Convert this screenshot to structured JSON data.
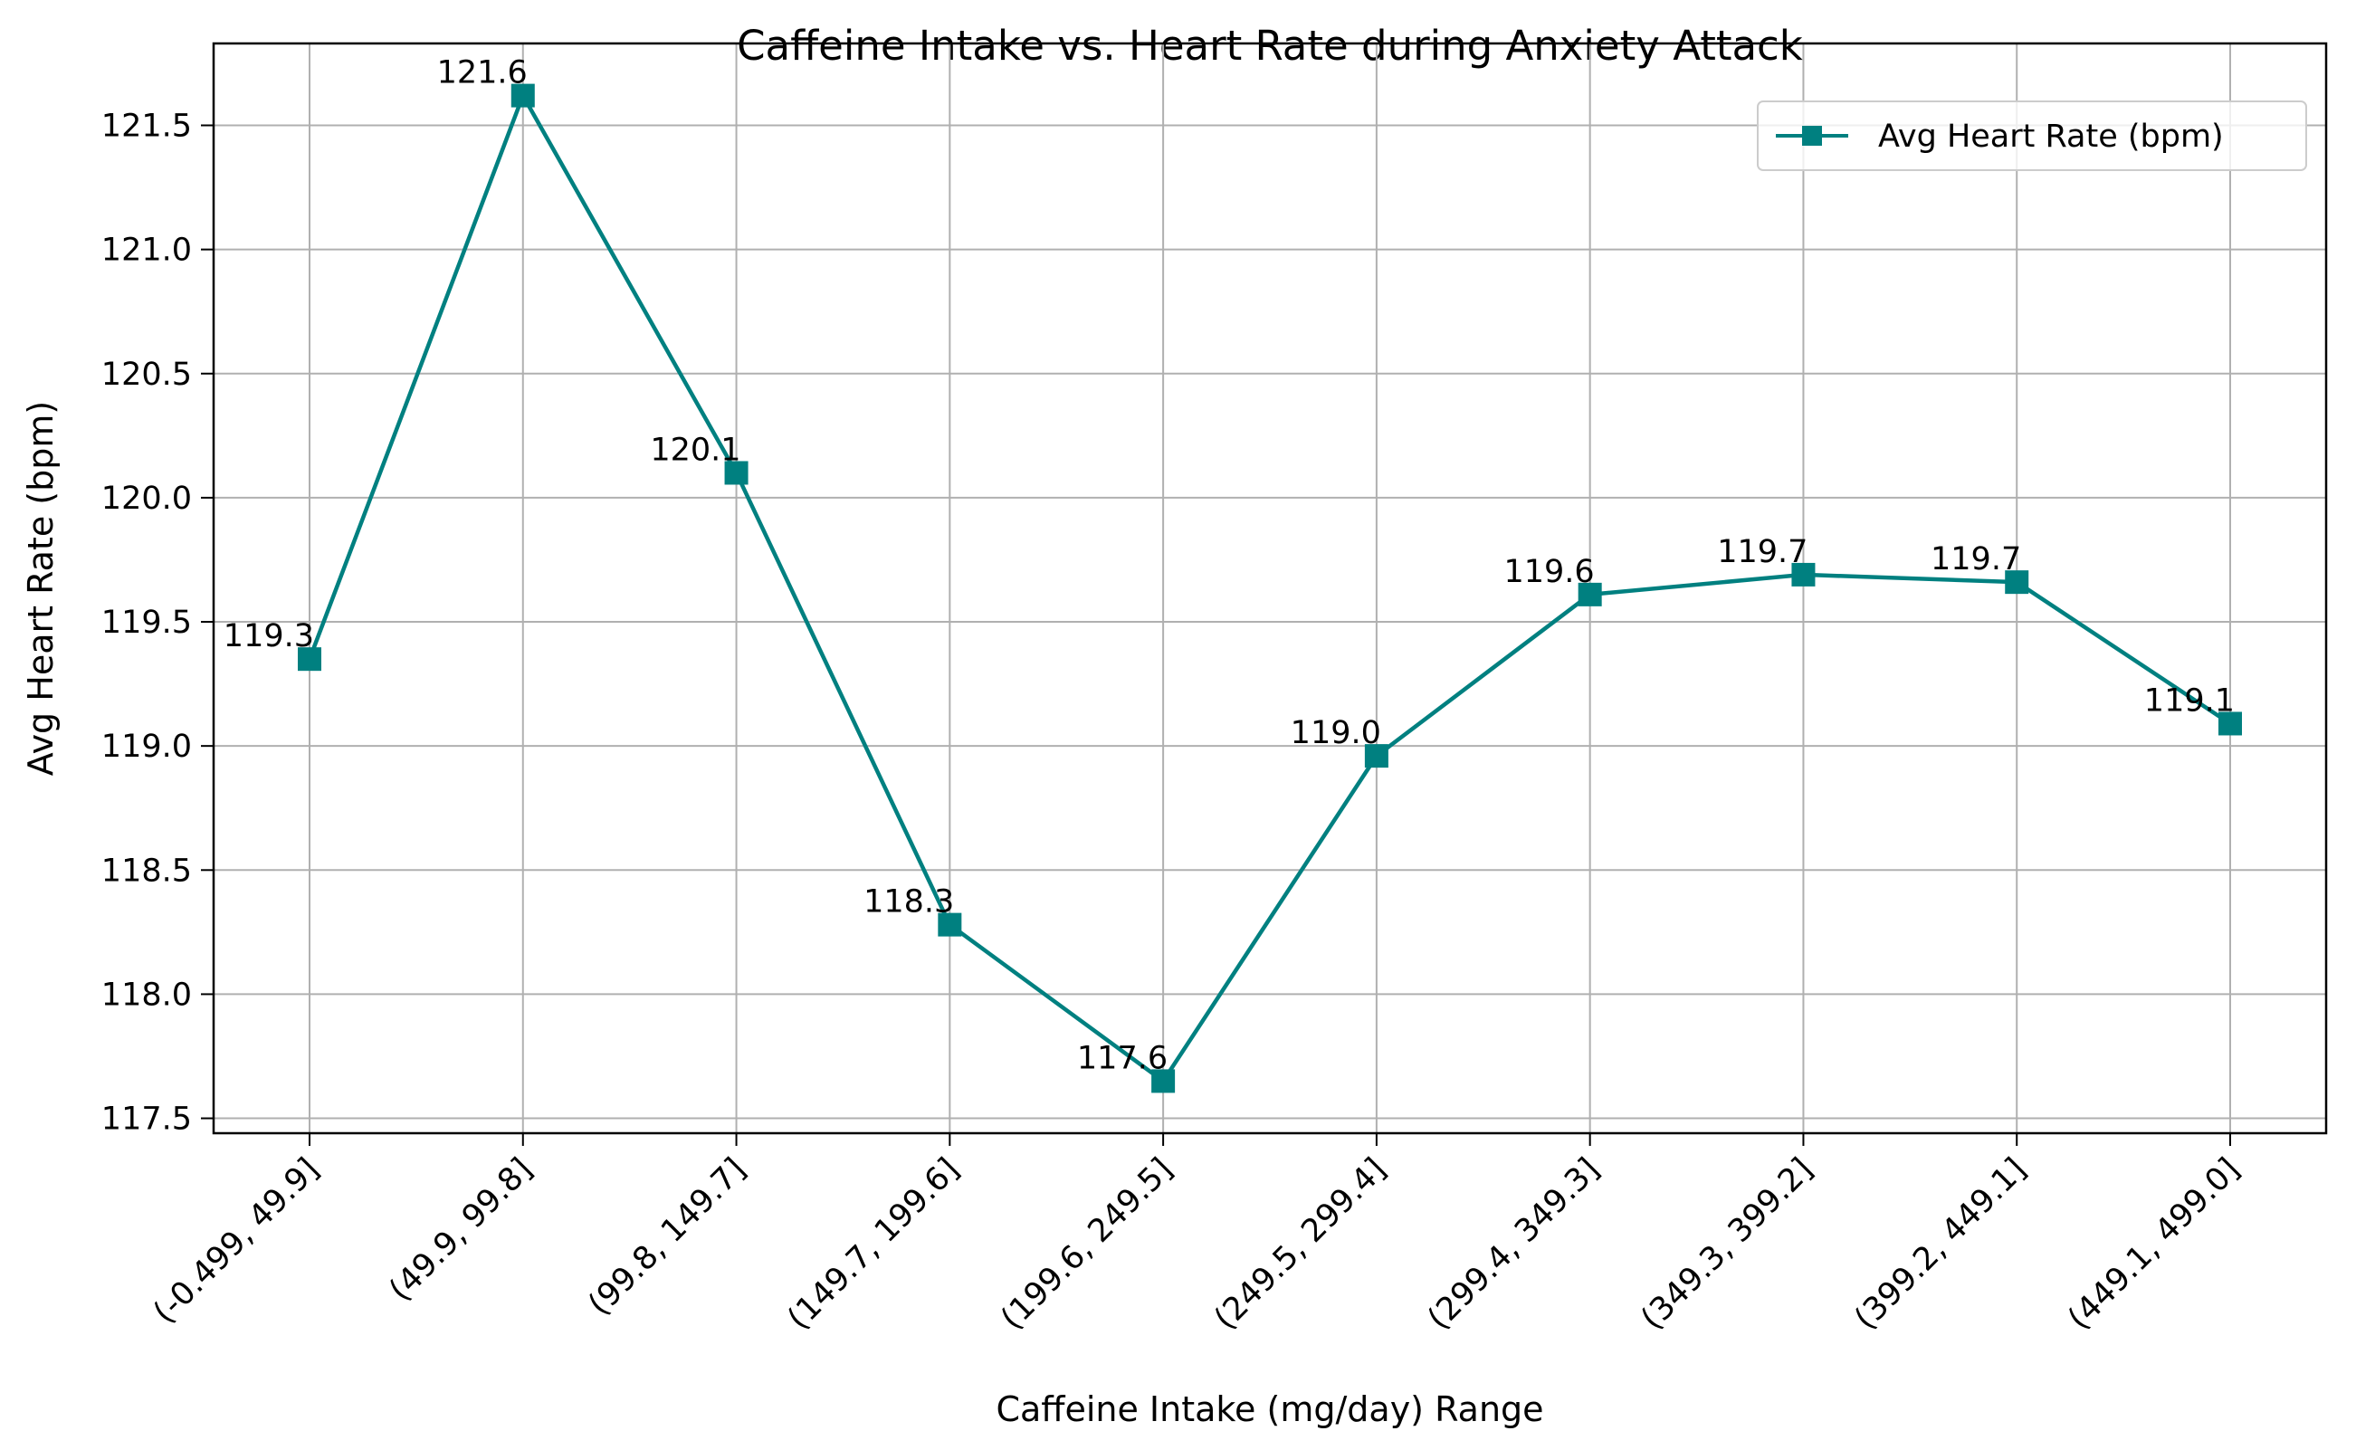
{
  "chart_data": {
    "type": "line",
    "title": "Caffeine Intake vs. Heart Rate during Anxiety Attack",
    "xlabel": "Caffeine Intake (mg/day) Range",
    "ylabel": "Avg Heart Rate (bpm)",
    "categories": [
      "(-0.499, 49.9]",
      "(49.9, 99.8]",
      "(99.8, 149.7]",
      "(149.7, 199.6]",
      "(199.6, 249.5]",
      "(249.5, 299.4]",
      "(299.4, 349.3]",
      "(349.3, 399.2]",
      "(399.2, 449.1]",
      "(449.1, 499.0]"
    ],
    "series": [
      {
        "name": "Avg Heart Rate (bpm)",
        "values": [
          119.35,
          121.62,
          120.1,
          118.28,
          117.65,
          118.96,
          119.61,
          119.69,
          119.66,
          119.09
        ],
        "labels": [
          "119.3",
          "121.6",
          "120.1",
          "118.3",
          "117.6",
          "119.0",
          "119.6",
          "119.7",
          "119.7",
          "119.1"
        ]
      }
    ],
    "yticks": [
      117.5,
      118.0,
      118.5,
      119.0,
      119.5,
      120.0,
      120.5,
      121.0,
      121.5
    ],
    "ytick_labels": [
      "117.5",
      "118.0",
      "118.5",
      "119.0",
      "119.5",
      "120.0",
      "120.5",
      "121.0",
      "121.5"
    ],
    "ylim": [
      117.44,
      121.83
    ],
    "grid": true,
    "legend_position": "top-right",
    "marker": "square",
    "line_color": "#008080"
  }
}
